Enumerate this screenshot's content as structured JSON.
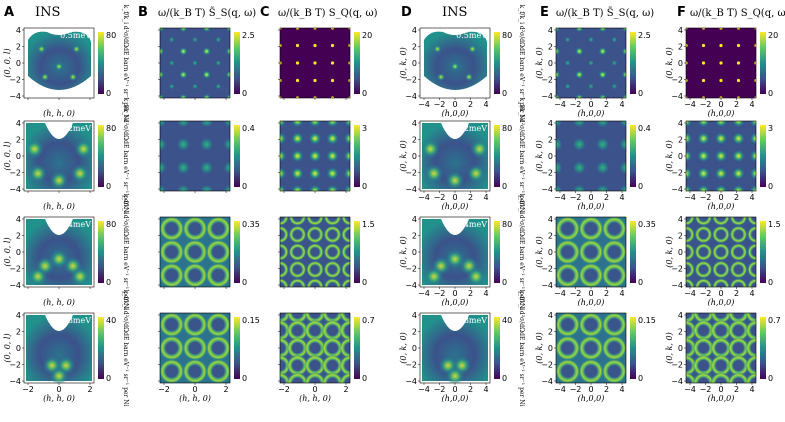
{
  "figure": {
    "panel_letters": [
      "A",
      "B",
      "C",
      "D",
      "E",
      "F"
    ],
    "column_titles": [
      "INS",
      "ω/(k_B T) S̃_S(q, ω)",
      "ω/(k_B T) S_Q(q, ω)",
      "INS",
      "ω/(k_B T) S̃_S(q, ω)",
      "ω/(k_B T) S_Q(q, ω)"
    ],
    "energies": [
      "0.5meV",
      "2meV",
      "4meV",
      "8meV"
    ],
    "colorbar_max": {
      "INS_left": [
        "80",
        "80",
        "80",
        "40"
      ],
      "B": [
        "2.5",
        "0.4",
        "0.35",
        "0.15"
      ],
      "C": [
        "20",
        "3",
        "1.5",
        "0.7"
      ],
      "INS_right": [
        "80",
        "80",
        "80",
        "40"
      ],
      "E": [
        "2.5",
        "0.4",
        "0.35",
        "0.15"
      ],
      "F": [
        "20",
        "3",
        "1.5",
        "0.7"
      ]
    },
    "colorbar_min": "0",
    "ins_cbar_label": "k_f/k_i d²σ/dΩdE barn eV⁻¹ sr⁻¹ per Ni",
    "left_axes": {
      "xlabel": "(h, h, 0)",
      "ylabel": "(0, 0, l)",
      "xticks": [
        "−2",
        "0",
        "2"
      ],
      "yticks": [
        "4",
        "2",
        "0",
        "−2",
        "−4"
      ]
    },
    "right_axes": {
      "xlabel": "(h,0,0)",
      "ylabel": "(0, k, 0)",
      "xticks": [
        "−4",
        "−2",
        "0",
        "2",
        "4"
      ],
      "yticks": [
        "4",
        "2",
        "0",
        "−2",
        "−4"
      ]
    },
    "colors": {
      "viridis_low": "#440154",
      "viridis_mid": "#21918c",
      "viridis_high": "#fde725"
    }
  }
}
